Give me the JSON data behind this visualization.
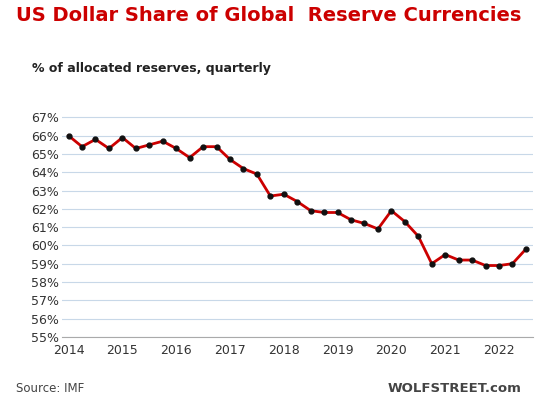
{
  "title": "US Dollar Share of Global  Reserve Currencies",
  "subtitle": "% of allocated reserves, quarterly",
  "source_left": "Source: IMF",
  "source_right": "WOLFSTREET.com",
  "line_color": "#cc0000",
  "marker_color": "#111111",
  "bg_color": "#ffffff",
  "grid_color": "#c8d8e8",
  "title_color": "#cc0000",
  "subtitle_color": "#222222",
  "source_color": "#444444",
  "wolfstreet_color": "#444444",
  "ylim": [
    55.0,
    67.5
  ],
  "yticks": [
    55,
    56,
    57,
    58,
    59,
    60,
    61,
    62,
    63,
    64,
    65,
    66,
    67
  ],
  "values": [
    66.0,
    65.4,
    65.8,
    65.3,
    65.9,
    65.3,
    65.5,
    65.7,
    65.3,
    64.8,
    65.4,
    65.4,
    64.7,
    64.2,
    63.9,
    62.7,
    62.8,
    62.4,
    61.9,
    61.8,
    61.8,
    61.4,
    61.2,
    60.9,
    61.9,
    61.3,
    60.5,
    59.0,
    59.5,
    59.2,
    59.2,
    58.9,
    58.9,
    59.0,
    59.8
  ],
  "x_tick_positions": [
    0,
    4,
    8,
    12,
    16,
    20,
    24,
    28,
    32
  ],
  "x_tick_labels": [
    "2014",
    "2015",
    "2016",
    "2017",
    "2018",
    "2019",
    "2020",
    "2021",
    "2022"
  ]
}
